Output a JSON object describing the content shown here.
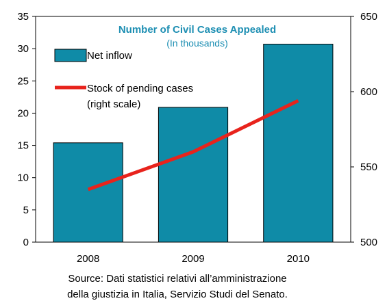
{
  "chart_data": {
    "type": "bar",
    "title": "Number of Civil Cases Appealed",
    "subtitle": "(In thousands)",
    "categories": [
      "2008",
      "2009",
      "2010"
    ],
    "series": [
      {
        "name": "Net inflow",
        "type": "bar",
        "axis": "left",
        "values": [
          15.4,
          20.9,
          30.7
        ],
        "color": "#0f8ba7"
      },
      {
        "name": "Stock of pending cases",
        "name_line2": "(right scale)",
        "type": "line",
        "axis": "right",
        "values": [
          535,
          560,
          594
        ],
        "color": "#e8231c"
      }
    ],
    "y_left": {
      "min": 0,
      "max": 35,
      "ticks": [
        "0",
        "5",
        "10",
        "15",
        "20",
        "25",
        "30",
        "35"
      ]
    },
    "y_right": {
      "min": 500,
      "max": 650,
      "ticks": [
        "500",
        "550",
        "600",
        "650"
      ]
    },
    "legend_position": "top-left",
    "grid": false
  },
  "source_line1": "Source: Dati statistici relativi all’amministrazione",
  "source_line2": "della giustizia in Italia, Servizio Studi del Senato."
}
